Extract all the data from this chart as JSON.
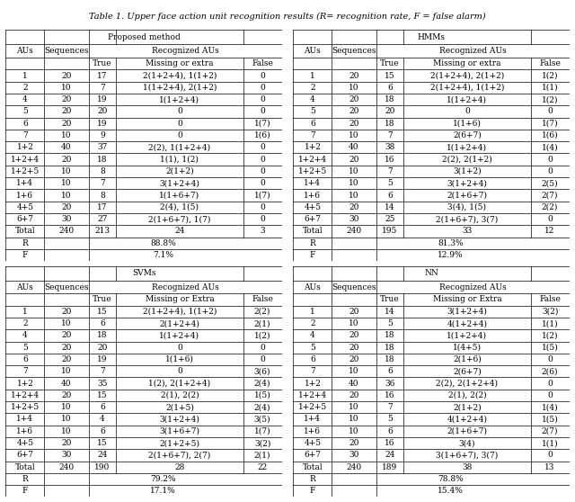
{
  "title": "Table 1. Upper face action unit recognition results (R= recognition rate, F = false alarm)",
  "tables": [
    {
      "name": "Proposed method",
      "mis_extra_header": "Missing or extra",
      "rows": [
        [
          "1",
          "20",
          "17",
          "2(1+2+4), 1(1+2)",
          "0"
        ],
        [
          "2",
          "10",
          "7",
          "1(1+2+4), 2(1+2)",
          "0"
        ],
        [
          "4",
          "20",
          "19",
          "1(1+2+4)",
          "0"
        ],
        [
          "5",
          "20",
          "20",
          "0",
          "0"
        ],
        [
          "6",
          "20",
          "19",
          "0",
          "1(7)"
        ],
        [
          "7",
          "10",
          "9",
          "0",
          "1(6)"
        ],
        [
          "1+2",
          "40",
          "37",
          "2(2), 1(1+2+4)",
          "0"
        ],
        [
          "1+2+4",
          "20",
          "18",
          "1(1), 1(2)",
          "0"
        ],
        [
          "1+2+5",
          "10",
          "8",
          "2(1+2)",
          "0"
        ],
        [
          "1+4",
          "10",
          "7",
          "3(1+2+4)",
          "0"
        ],
        [
          "1+6",
          "10",
          "8",
          "1(1+6+7)",
          "1(7)"
        ],
        [
          "4+5",
          "20",
          "17",
          "2(4), 1(5)",
          "0"
        ],
        [
          "6+7",
          "30",
          "27",
          "2(1+6+7), 1(7)",
          "0"
        ],
        [
          "Total",
          "240",
          "213",
          "24",
          "3"
        ]
      ],
      "R": "88.8%",
      "F": "7.1%"
    },
    {
      "name": "HMMs",
      "mis_extra_header": "Missing or extra",
      "rows": [
        [
          "1",
          "20",
          "15",
          "2(1+2+4), 2(1+2)",
          "1(2)"
        ],
        [
          "2",
          "10",
          "6",
          "2(1+2+4), 1(1+2)",
          "1(1)"
        ],
        [
          "4",
          "20",
          "18",
          "1(1+2+4)",
          "1(2)"
        ],
        [
          "5",
          "20",
          "20",
          "0",
          "0"
        ],
        [
          "6",
          "20",
          "18",
          "1(1+6)",
          "1(7)"
        ],
        [
          "7",
          "10",
          "7",
          "2(6+7)",
          "1(6)"
        ],
        [
          "1+2",
          "40",
          "38",
          "1(1+2+4)",
          "1(4)"
        ],
        [
          "1+2+4",
          "20",
          "16",
          "2(2), 2(1+2)",
          "0"
        ],
        [
          "1+2+5",
          "10",
          "7",
          "3(1+2)",
          "0"
        ],
        [
          "1+4",
          "10",
          "5",
          "3(1+2+4)",
          "2(5)"
        ],
        [
          "1+6",
          "10",
          "6",
          "2(1+6+7)",
          "2(7)"
        ],
        [
          "4+5",
          "20",
          "14",
          "3(4), 1(5)",
          "2(2)"
        ],
        [
          "6+7",
          "30",
          "25",
          "2(1+6+7), 3(7)",
          "0"
        ],
        [
          "Total",
          "240",
          "195",
          "33",
          "12"
        ]
      ],
      "R": "81.3%",
      "F": "12.9%"
    },
    {
      "name": "SVMs",
      "mis_extra_header": "Missing or Extra",
      "rows": [
        [
          "1",
          "20",
          "15",
          "2(1+2+4), 1(1+2)",
          "2(2)"
        ],
        [
          "2",
          "10",
          "6",
          "2(1+2+4)",
          "2(1)"
        ],
        [
          "4",
          "20",
          "18",
          "1(1+2+4)",
          "1(2)"
        ],
        [
          "5",
          "20",
          "20",
          "0",
          "0"
        ],
        [
          "6",
          "20",
          "19",
          "1(1+6)",
          "0"
        ],
        [
          "7",
          "10",
          "7",
          "0",
          "3(6)"
        ],
        [
          "1+2",
          "40",
          "35",
          "1(2), 2(1+2+4)",
          "2(4)"
        ],
        [
          "1+2+4",
          "20",
          "15",
          "2(1), 2(2)",
          "1(5)"
        ],
        [
          "1+2+5",
          "10",
          "6",
          "2(1+5)",
          "2(4)"
        ],
        [
          "1+4",
          "10",
          "4",
          "3(1+2+4)",
          "3(5)"
        ],
        [
          "1+6",
          "10",
          "6",
          "3(1+6+7)",
          "1(7)"
        ],
        [
          "4+5",
          "20",
          "15",
          "2(1+2+5)",
          "3(2)"
        ],
        [
          "6+7",
          "30",
          "24",
          "2(1+6+7), 2(7)",
          "2(1)"
        ],
        [
          "Total",
          "240",
          "190",
          "28",
          "22"
        ]
      ],
      "R": "79.2%",
      "F": "17.1%"
    },
    {
      "name": "NN",
      "mis_extra_header": "Missing or Extra",
      "rows": [
        [
          "1",
          "20",
          "14",
          "3(1+2+4)",
          "3(2)"
        ],
        [
          "2",
          "10",
          "5",
          "4(1+2+4)",
          "1(1)"
        ],
        [
          "4",
          "20",
          "18",
          "1(1+2+4)",
          "1(2)"
        ],
        [
          "5",
          "20",
          "18",
          "1(4+5)",
          "1(5)"
        ],
        [
          "6",
          "20",
          "18",
          "2(1+6)",
          "0"
        ],
        [
          "7",
          "10",
          "6",
          "2(6+7)",
          "2(6)"
        ],
        [
          "1+2",
          "40",
          "36",
          "2(2), 2(1+2+4)",
          "0"
        ],
        [
          "1+2+4",
          "20",
          "16",
          "2(1), 2(2)",
          "0"
        ],
        [
          "1+2+5",
          "10",
          "7",
          "2(1+2)",
          "1(4)"
        ],
        [
          "1+4",
          "10",
          "5",
          "4(1+2+4)",
          "1(5)"
        ],
        [
          "1+6",
          "10",
          "6",
          "2(1+6+7)",
          "2(7)"
        ],
        [
          "4+5",
          "20",
          "16",
          "3(4)",
          "1(1)"
        ],
        [
          "6+7",
          "30",
          "24",
          "3(1+6+7), 3(7)",
          "0"
        ],
        [
          "Total",
          "240",
          "189",
          "38",
          "13"
        ]
      ],
      "R": "78.8%",
      "F": "15.4%"
    }
  ]
}
